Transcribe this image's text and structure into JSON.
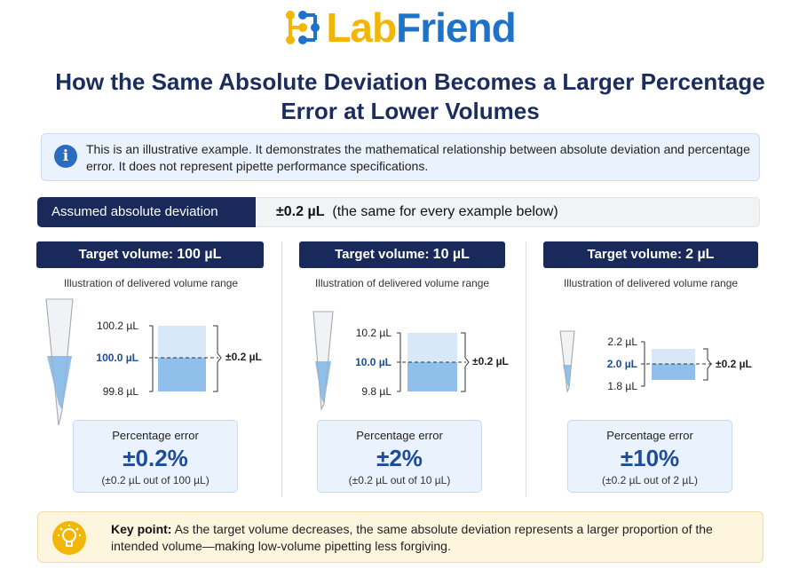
{
  "brand": {
    "logo_part1": "Lab",
    "logo_part2": "Friend",
    "colors": {
      "yellow": "#f2b705",
      "blue": "#1e73c8"
    }
  },
  "title": "How the Same Absolute Deviation Becomes a Larger Percentage Error at Lower Volumes",
  "notice": {
    "icon": "info-icon",
    "text": "This is an illustrative example. It demonstrates the mathematical relationship between absolute deviation and percentage error. It does not represent pipette performance specifications."
  },
  "assumed": {
    "label": "Assumed absolute deviation",
    "value": "±0.2 µL",
    "note": "(the same for every example below)"
  },
  "columns": [
    {
      "head_label": "Target volume:",
      "head_value": "100 µL",
      "subtitle": "Illustration of delivered volume range",
      "upper": "100.2 µL",
      "target": "100.0 µL",
      "lower": "99.8 µL",
      "deviation": "±0.2 µL",
      "pct_label": "Percentage error",
      "pct_value": "±0.2%",
      "pct_note": "(±0.2 µL out of 100 µL)"
    },
    {
      "head_label": "Target volume:",
      "head_value": "10 µL",
      "subtitle": "Illustration of delivered volume range",
      "upper": "10.2 µL",
      "target": "10.0 µL",
      "lower": "9.8 µL",
      "deviation": "±0.2 µL",
      "pct_label": "Percentage error",
      "pct_value": "±2%",
      "pct_note": "(±0.2 µL out of 10 µL)"
    },
    {
      "head_label": "Target volume:",
      "head_value": "2 µL",
      "subtitle": "Illustration of delivered volume range",
      "upper": "2.2 µL",
      "target": "2.0 µL",
      "lower": "1.8 µL",
      "deviation": "±0.2 µL",
      "pct_label": "Percentage error",
      "pct_value": "±10%",
      "pct_note": "(±0.2 µL out of 2 µL)"
    }
  ],
  "keypoint": {
    "icon": "lightbulb-icon",
    "label": "Key point:",
    "text": " As the target volume decreases, the same absolute deviation represents a larger proportion of the intended volume—making low-volume pipetting less forgiving."
  }
}
